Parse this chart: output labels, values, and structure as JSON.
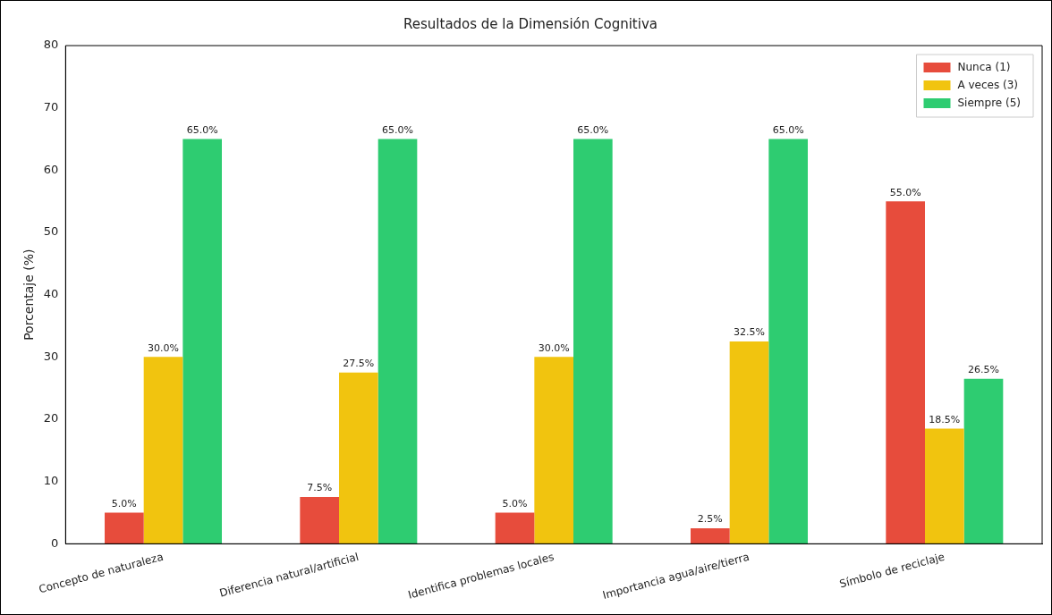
{
  "chart_data": {
    "type": "bar",
    "title": "Resultados de la Dimensión Cognitiva",
    "ylabel": "Porcentaje (%)",
    "categories": [
      "Concepto de naturaleza",
      "Diferencia natural/artificial",
      "Identifica problemas locales",
      "Importancia agua/aire/tierra",
      "Símbolo de reciclaje"
    ],
    "series": [
      {
        "name": "Nunca (1)",
        "color": "#e74c3c",
        "values": [
          5,
          7.5,
          5,
          2.5,
          55
        ],
        "value_labels": [
          "5.0%",
          "7.5%",
          "5.0%",
          "2.5%",
          "55.0%"
        ]
      },
      {
        "name": "A veces (3)",
        "color": "#f1c40f",
        "values": [
          30,
          27.5,
          30,
          32.5,
          18.5
        ],
        "value_labels": [
          "30.0%",
          "27.5%",
          "30.0%",
          "32.5%",
          "18.5%"
        ]
      },
      {
        "name": "Siempre (5)",
        "color": "#2ecc71",
        "values": [
          65,
          65,
          65,
          65,
          26.5
        ],
        "value_labels": [
          "65.0%",
          "65.0%",
          "65.0%",
          "65.0%",
          "26.5%"
        ]
      }
    ],
    "ylim": [
      0,
      80
    ],
    "yticks": [
      0,
      10,
      20,
      30,
      40,
      50,
      60,
      70,
      80
    ],
    "grid": false,
    "legend": "top right"
  }
}
